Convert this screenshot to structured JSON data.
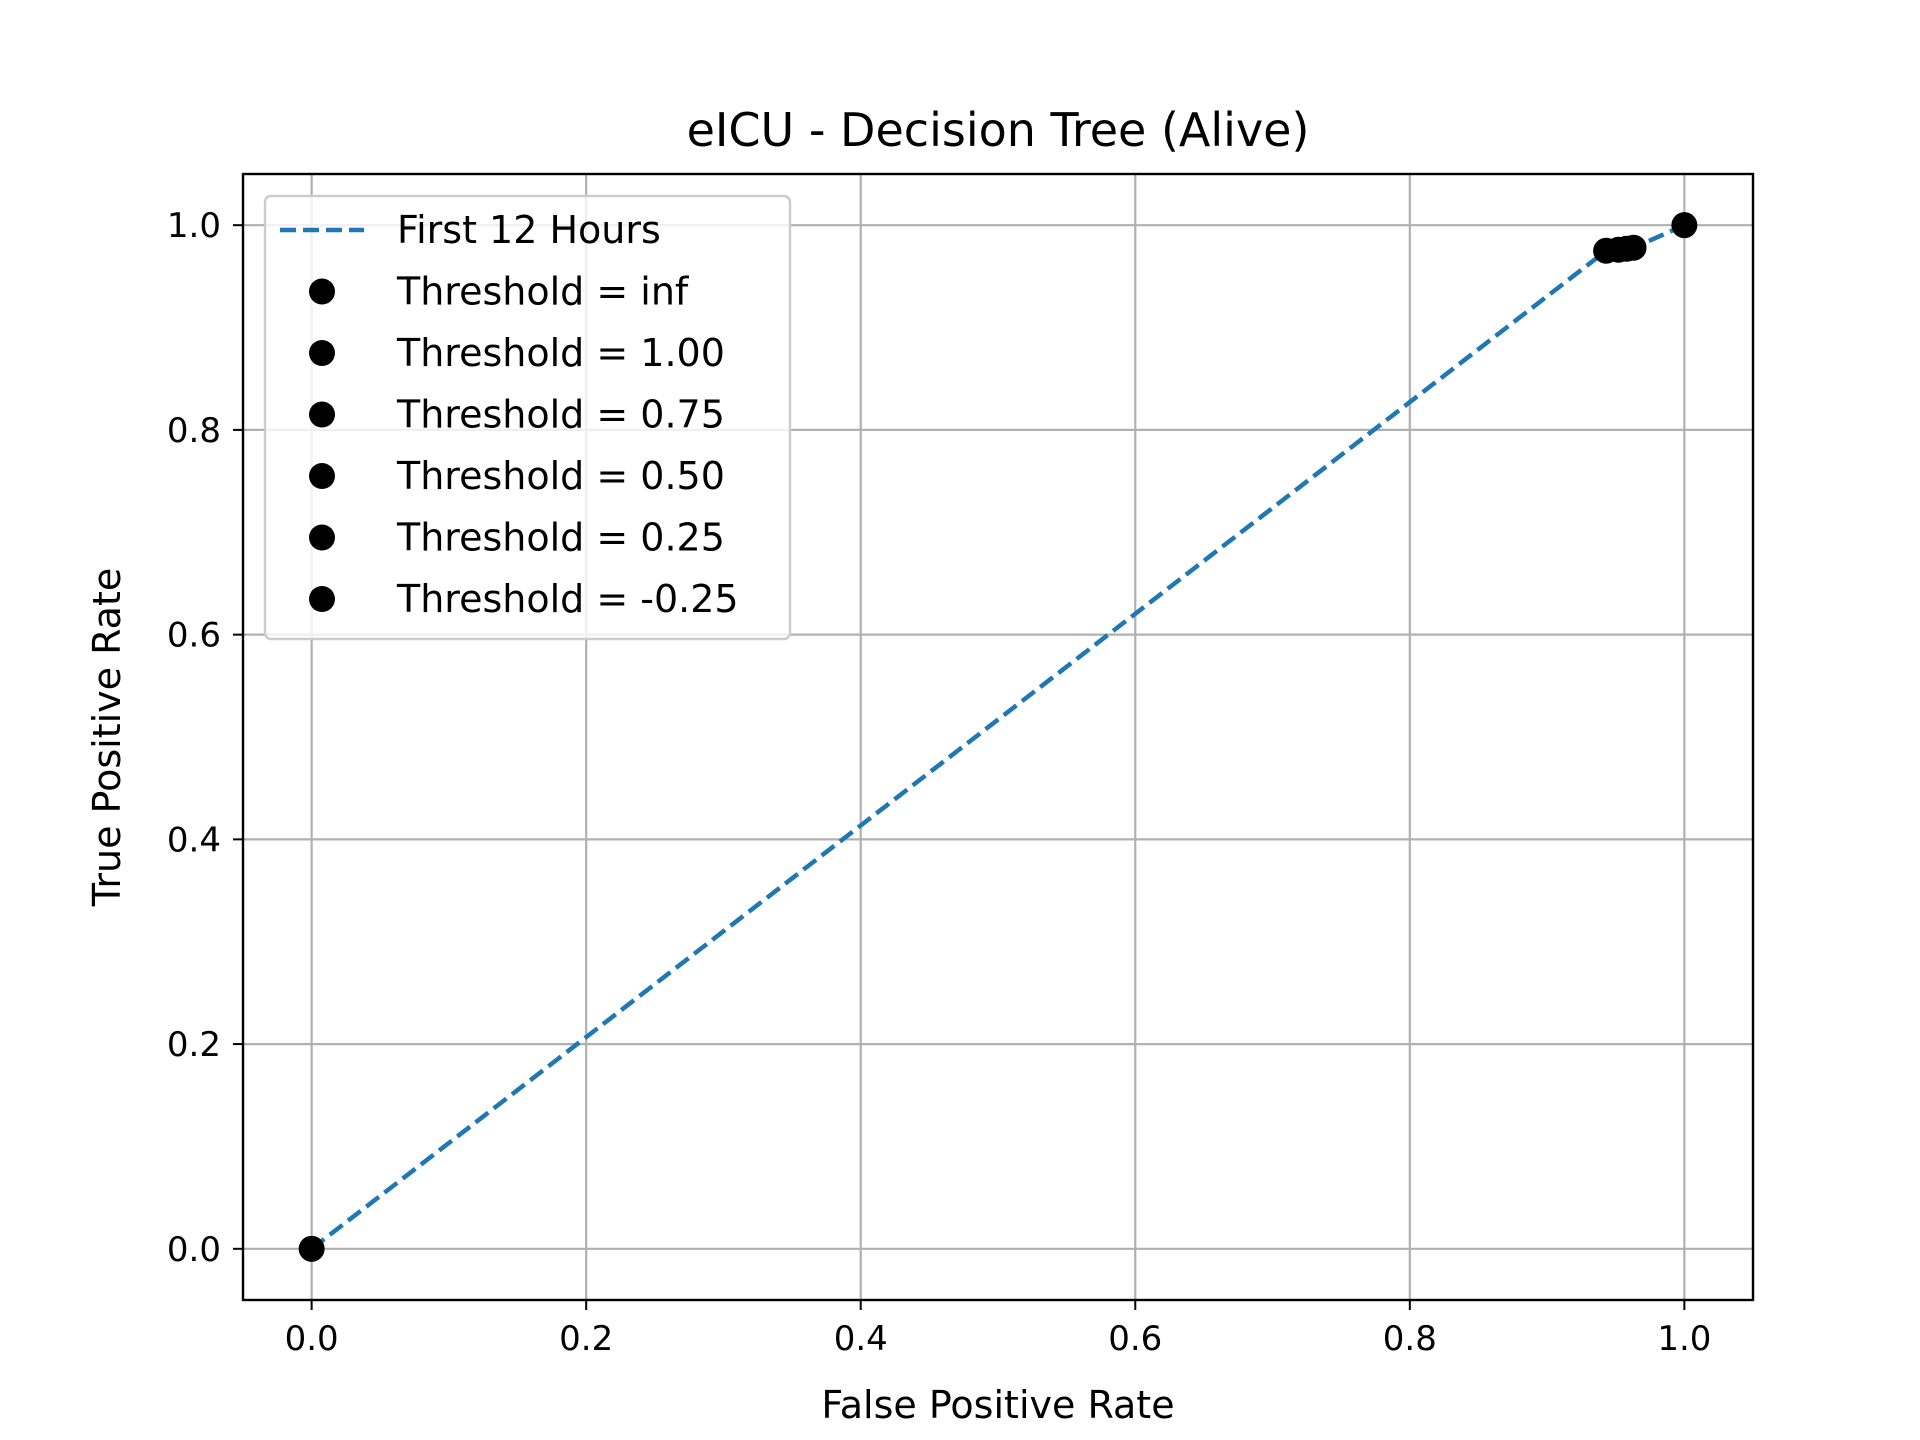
{
  "chart_data": {
    "type": "line",
    "title": "eICU - Decision Tree (Alive)",
    "xlabel": "False Positive Rate",
    "ylabel": "True Positive Rate",
    "xlim": [
      -0.05,
      1.05
    ],
    "ylim": [
      -0.05,
      1.05
    ],
    "xticks": [
      "0.0",
      "0.2",
      "0.4",
      "0.6",
      "0.8",
      "1.0"
    ],
    "yticks": [
      "0.0",
      "0.2",
      "0.4",
      "0.6",
      "0.8",
      "1.0"
    ],
    "grid": true,
    "legend_position": "upper-left",
    "series": [
      {
        "name": "First 12 Hours",
        "color": "#1f77b4",
        "line_style": "dashed",
        "x": [
          0.0,
          0.943,
          0.952,
          0.958,
          0.963,
          1.0
        ],
        "y": [
          0.0,
          0.975,
          0.976,
          0.977,
          0.978,
          1.0
        ]
      }
    ],
    "threshold_points": {
      "color": "#000000",
      "points": [
        {
          "label": "Threshold = inf",
          "x": 0.0,
          "y": 0.0
        },
        {
          "label": "Threshold = 1.00",
          "x": 0.943,
          "y": 0.975
        },
        {
          "label": "Threshold = 0.75",
          "x": 0.952,
          "y": 0.976
        },
        {
          "label": "Threshold = 0.50",
          "x": 0.958,
          "y": 0.977
        },
        {
          "label": "Threshold = 0.25",
          "x": 0.963,
          "y": 0.978
        },
        {
          "label": "Threshold = -0.25",
          "x": 1.0,
          "y": 1.0
        }
      ]
    }
  }
}
